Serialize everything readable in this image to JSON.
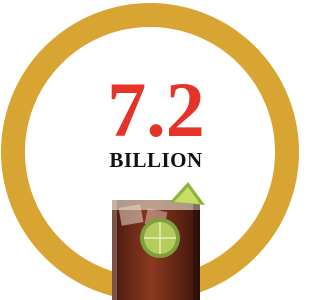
{
  "stat": {
    "number": "7.2",
    "unit": "BILLION"
  }
}
